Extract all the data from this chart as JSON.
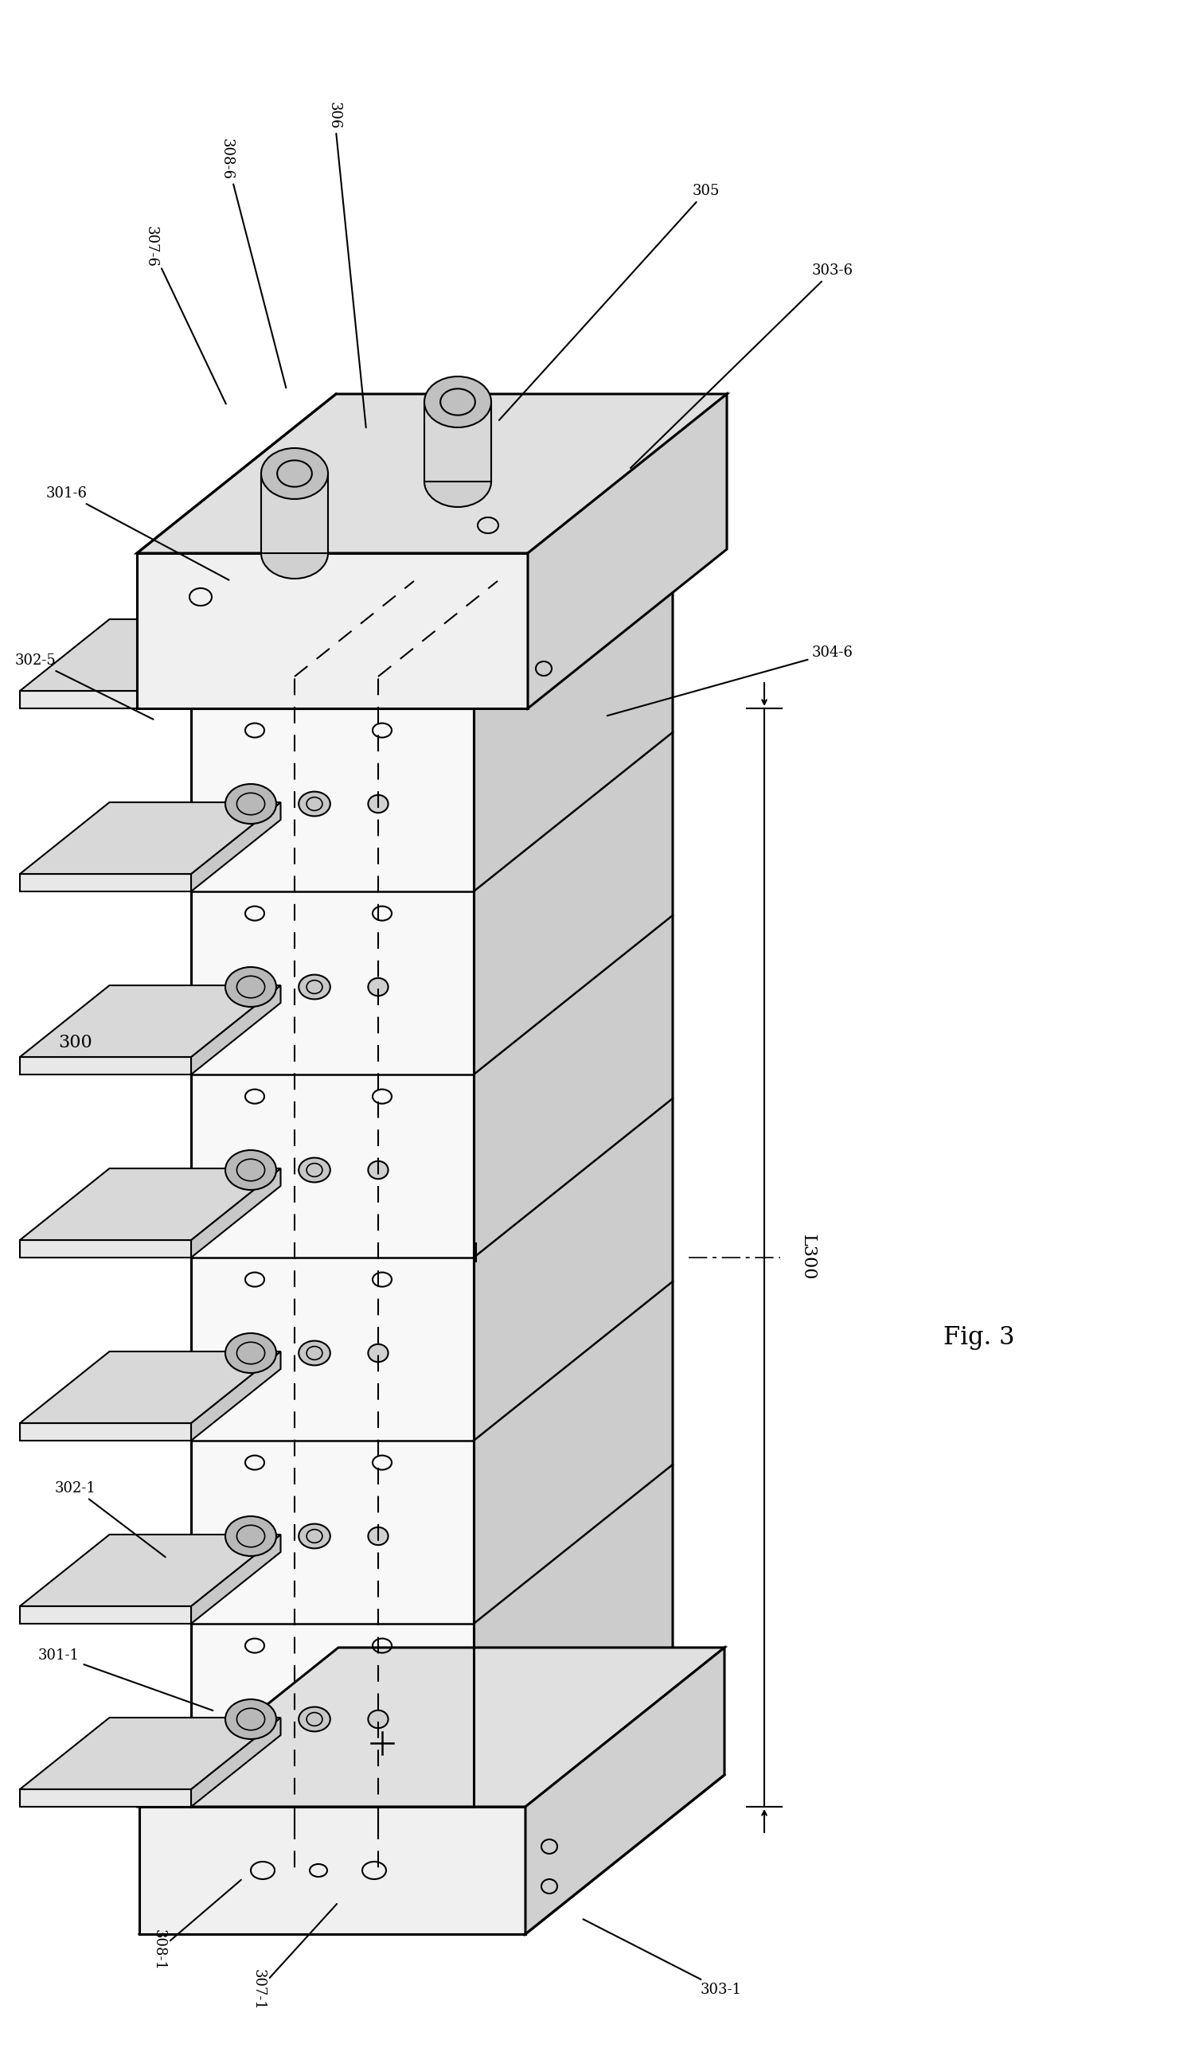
{
  "fig_label": "Fig. 3",
  "assembly_label": "300",
  "background_color": "#ffffff",
  "line_color": "#000000",
  "fig_width": 14.96,
  "fig_height": 26.02,
  "labels": {
    "307_6": "307-6",
    "308_6": "308-6",
    "306": "306",
    "305": "305",
    "303_6": "303-6",
    "301_6": "301-6",
    "302_5": "302-5",
    "304_6": "304-6",
    "300": "300",
    "302_1": "302-1",
    "301_1": "301-1",
    "L300": "L300",
    "308_1": "308-1",
    "307_1": "307-1",
    "303_1": "303-1"
  }
}
